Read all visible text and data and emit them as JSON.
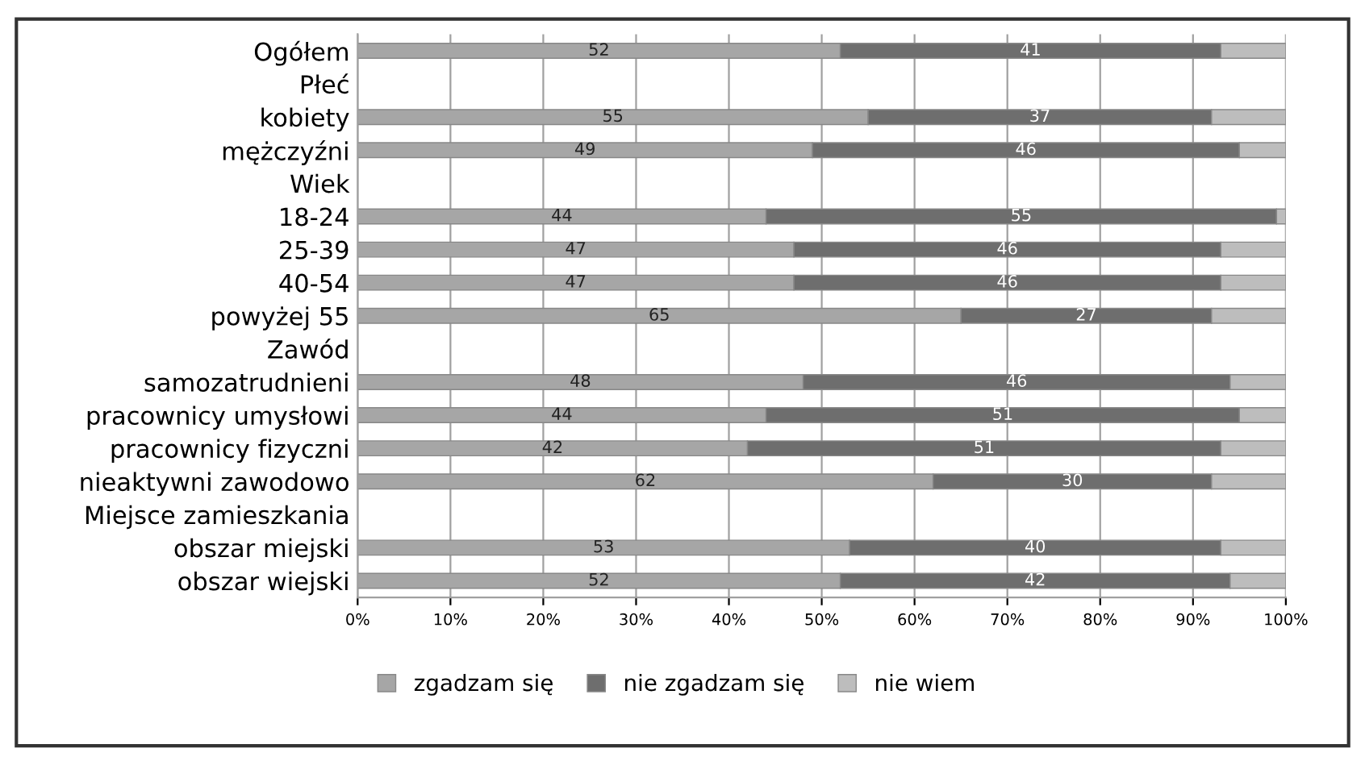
{
  "chart_data": {
    "type": "bar",
    "orientation": "horizontal",
    "stacked": true,
    "categories": [
      "Ogółem",
      "Płeć",
      "kobiety",
      "mężczyźni",
      "Wiek",
      "18-24",
      "25-39",
      "40-54",
      "powyżej 55",
      "Zawód",
      "samozatrudnieni",
      "pracownicy umysłowi",
      "pracownicy fizyczni",
      "nieaktywni zawodowo",
      "Miejsce zamieszkania",
      "obszar miejski",
      "obszar wiejski"
    ],
    "series": [
      {
        "name": "zgadzam się",
        "color": "#a6a6a6",
        "values": [
          52,
          null,
          55,
          49,
          null,
          44,
          47,
          47,
          65,
          null,
          48,
          44,
          42,
          62,
          null,
          53,
          52
        ],
        "value_labels": [
          "52",
          null,
          "55",
          "49",
          null,
          "44",
          "47",
          "47",
          "65",
          null,
          "48",
          "44",
          "42",
          "62",
          null,
          "53",
          "52"
        ]
      },
      {
        "name": "nie zgadzam się",
        "color": "#6e6e6e",
        "values": [
          41,
          null,
          37,
          46,
          null,
          55,
          46,
          46,
          27,
          null,
          46,
          51,
          51,
          30,
          null,
          40,
          42
        ],
        "value_labels": [
          "41",
          null,
          "37",
          "46",
          null,
          "55",
          "46",
          "46",
          "27",
          null,
          "46",
          "51",
          "51",
          "30",
          null,
          "40",
          "42"
        ]
      },
      {
        "name": "nie wiem",
        "color": "#bdbdbd",
        "values": [
          7,
          null,
          8,
          5,
          null,
          1,
          7,
          7,
          8,
          null,
          6,
          5,
          7,
          8,
          null,
          7,
          6
        ]
      }
    ],
    "xlim": [
      0,
      100
    ],
    "xticks": [
      {
        "value": 0,
        "label": "0%"
      },
      {
        "value": 10,
        "label": "10%"
      },
      {
        "value": 20,
        "label": "20%"
      },
      {
        "value": 30,
        "label": "30%"
      },
      {
        "value": 40,
        "label": "40%"
      },
      {
        "value": 50,
        "label": "50%"
      },
      {
        "value": 60,
        "label": "60%"
      },
      {
        "value": 70,
        "label": "70%"
      },
      {
        "value": 80,
        "label": "80%"
      },
      {
        "value": 90,
        "label": "90%"
      },
      {
        "value": 100,
        "label": "100%"
      }
    ],
    "grid": "x",
    "legend": "bottom"
  }
}
